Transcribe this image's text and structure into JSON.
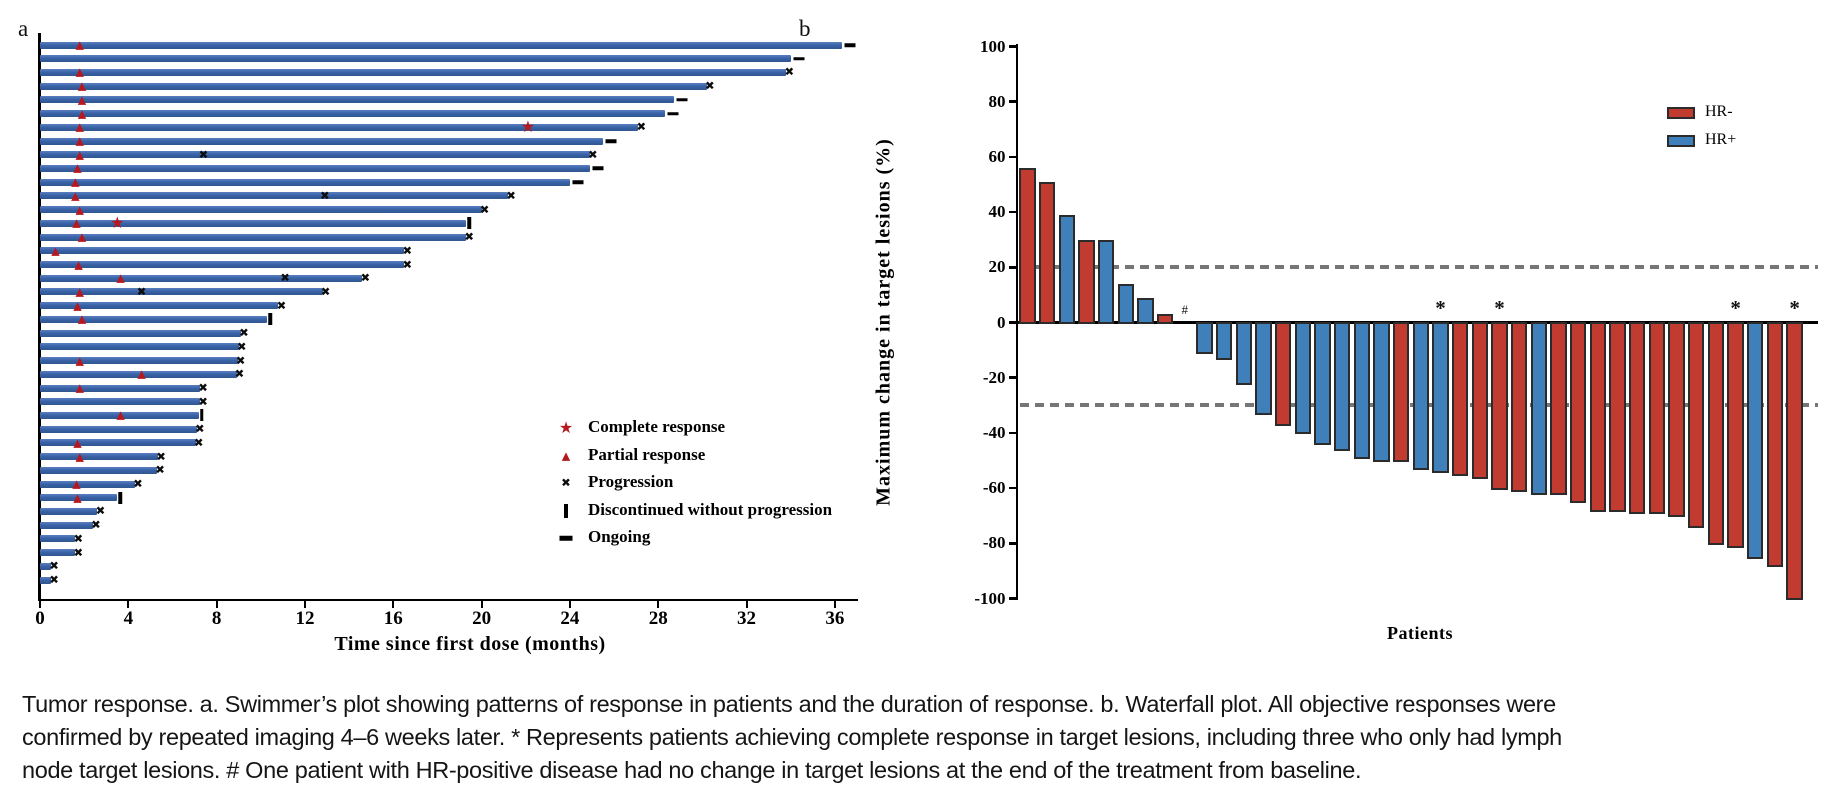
{
  "caption": {
    "lines": [
      "Tumor response. a. Swimmer’s plot showing patterns of response in patients and the duration of response. b. Waterfall plot. All objective responses were",
      "confirmed by repeated imaging 4–6 weeks later. * Represents patients achieving complete response in target lesions, including three who only had lymph",
      "node target lesions. # One patient with HR-positive disease had no change in target lesions at the end of the treatment from baseline."
    ]
  },
  "chart_data": [
    {
      "type": "bar",
      "name": "swimmer-plot",
      "panel_label": "a",
      "orientation": "horizontal",
      "xlabel": "Time since first dose (months)",
      "xlim": [
        0,
        37
      ],
      "x_ticks": [
        0,
        4,
        8,
        12,
        16,
        20,
        24,
        28,
        32,
        36
      ],
      "bar_color": "#3a63a8",
      "marker_red": "#b5191f",
      "legend": [
        {
          "symbol": "star",
          "label": "Complete response"
        },
        {
          "symbol": "triangle",
          "label": "Partial response"
        },
        {
          "symbol": "x",
          "label": "Progression"
        },
        {
          "symbol": "bar",
          "label": "Discontinued without progression"
        },
        {
          "symbol": "dash",
          "label": "Ongoing"
        }
      ],
      "patients": [
        {
          "months": 36.3,
          "end": "ongoing",
          "pr": [
            1.8
          ],
          "cr": [],
          "pd": []
        },
        {
          "months": 34.0,
          "end": "ongoing",
          "pr": [],
          "cr": [],
          "pd": []
        },
        {
          "months": 33.8,
          "end": "progression",
          "pr": [
            1.8
          ],
          "cr": [],
          "pd": []
        },
        {
          "months": 30.2,
          "end": "progression",
          "pr": [
            1.9
          ],
          "cr": [],
          "pd": []
        },
        {
          "months": 28.7,
          "end": "ongoing",
          "pr": [
            1.9
          ],
          "cr": [],
          "pd": []
        },
        {
          "months": 28.3,
          "end": "ongoing",
          "pr": [
            1.9
          ],
          "cr": [],
          "pd": []
        },
        {
          "months": 27.1,
          "end": "progression",
          "pr": [
            1.8
          ],
          "cr": [
            22.1
          ],
          "pd": []
        },
        {
          "months": 25.5,
          "end": "ongoing",
          "pr": [
            1.8
          ],
          "cr": [],
          "pd": []
        },
        {
          "months": 24.9,
          "end": "progression",
          "pr": [
            1.8
          ],
          "cr": [],
          "pd": [
            7.4
          ]
        },
        {
          "months": 24.9,
          "end": "ongoing",
          "pr": [
            1.7
          ],
          "cr": [],
          "pd": []
        },
        {
          "months": 24.0,
          "end": "ongoing",
          "pr": [
            1.6
          ],
          "cr": [],
          "pd": []
        },
        {
          "months": 21.2,
          "end": "progression",
          "pr": [
            1.6
          ],
          "cr": [],
          "pd": [
            12.9
          ]
        },
        {
          "months": 20.0,
          "end": "progression",
          "pr": [
            1.8
          ],
          "cr": [],
          "pd": []
        },
        {
          "months": 19.3,
          "end": "discontinued",
          "pr": [
            1.65
          ],
          "cr": [
            3.5
          ],
          "pd": []
        },
        {
          "months": 19.3,
          "end": "progression",
          "pr": [
            1.9
          ],
          "cr": [],
          "pd": []
        },
        {
          "months": 16.5,
          "end": "progression",
          "pr": [
            0.7
          ],
          "cr": [],
          "pd": []
        },
        {
          "months": 16.5,
          "end": "progression",
          "pr": [
            1.75
          ],
          "cr": [],
          "pd": []
        },
        {
          "months": 14.6,
          "end": "progression",
          "pr": [
            3.65
          ],
          "cr": [],
          "pd": [
            11.1
          ]
        },
        {
          "months": 12.8,
          "end": "progression",
          "pr": [
            1.8
          ],
          "cr": [],
          "pd": [
            4.6
          ]
        },
        {
          "months": 10.8,
          "end": "progression",
          "pr": [
            1.7
          ],
          "cr": [],
          "pd": []
        },
        {
          "months": 10.3,
          "end": "discontinued",
          "pr": [
            1.9
          ],
          "cr": [],
          "pd": []
        },
        {
          "months": 9.1,
          "end": "progression",
          "pr": [],
          "cr": [],
          "pd": []
        },
        {
          "months": 9.0,
          "end": "progression",
          "pr": [],
          "cr": [],
          "pd": []
        },
        {
          "months": 8.95,
          "end": "progression",
          "pr": [
            1.8
          ],
          "cr": [],
          "pd": []
        },
        {
          "months": 8.9,
          "end": "progression",
          "pr": [
            4.6
          ],
          "cr": [],
          "pd": []
        },
        {
          "months": 7.25,
          "end": "progression",
          "pr": [
            1.8
          ],
          "cr": [],
          "pd": []
        },
        {
          "months": 7.25,
          "end": "progression",
          "pr": [],
          "cr": [],
          "pd": []
        },
        {
          "months": 7.2,
          "end": "discontinued",
          "pr": [
            3.65
          ],
          "cr": [],
          "pd": []
        },
        {
          "months": 7.1,
          "end": "progression",
          "pr": [],
          "cr": [],
          "pd": []
        },
        {
          "months": 7.05,
          "end": "progression",
          "pr": [
            1.7
          ],
          "cr": [],
          "pd": []
        },
        {
          "months": 5.35,
          "end": "progression",
          "pr": [
            1.8
          ],
          "cr": [],
          "pd": []
        },
        {
          "months": 5.3,
          "end": "progression",
          "pr": [],
          "cr": [],
          "pd": []
        },
        {
          "months": 4.3,
          "end": "progression",
          "pr": [
            1.65
          ],
          "cr": [],
          "pd": []
        },
        {
          "months": 3.5,
          "end": "discontinued",
          "pr": [
            1.7
          ],
          "cr": [],
          "pd": []
        },
        {
          "months": 2.6,
          "end": "progression",
          "pr": [],
          "cr": [],
          "pd": []
        },
        {
          "months": 2.4,
          "end": "progression",
          "pr": [],
          "cr": [],
          "pd": []
        },
        {
          "months": 1.6,
          "end": "progression",
          "pr": [],
          "cr": [],
          "pd": []
        },
        {
          "months": 1.6,
          "end": "progression",
          "pr": [],
          "cr": [],
          "pd": []
        },
        {
          "months": 0.5,
          "end": "progression",
          "pr": [],
          "cr": [],
          "pd": []
        },
        {
          "months": 0.5,
          "end": "progression",
          "pr": [],
          "cr": [],
          "pd": []
        }
      ]
    },
    {
      "type": "bar",
      "name": "waterfall-plot",
      "panel_label": "b",
      "ylabel": "Maximum change in target lesions (%)",
      "xlabel": "Patients",
      "ylim": [
        -100,
        100
      ],
      "y_ticks": [
        100,
        80,
        60,
        40,
        20,
        0,
        -20,
        -40,
        -60,
        -80,
        -100
      ],
      "reference_lines": [
        20,
        -30
      ],
      "legend": [
        {
          "label": "HR-",
          "color": "#c23b31"
        },
        {
          "label": "HR+",
          "color": "#3f80ba"
        }
      ],
      "series_colors": {
        "HR-": "#c23b31",
        "HR+": "#3f80ba"
      },
      "patients": [
        {
          "v": 56,
          "g": "HR-"
        },
        {
          "v": 51,
          "g": "HR-"
        },
        {
          "v": 39,
          "g": "HR+"
        },
        {
          "v": 30,
          "g": "HR-"
        },
        {
          "v": 30,
          "g": "HR+"
        },
        {
          "v": 14,
          "g": "HR+"
        },
        {
          "v": 9,
          "g": "HR+"
        },
        {
          "v": 3,
          "g": "HR-"
        },
        {
          "v": 0,
          "g": "HR+",
          "note": "#"
        },
        {
          "v": -11,
          "g": "HR+"
        },
        {
          "v": -13,
          "g": "HR+"
        },
        {
          "v": -22,
          "g": "HR+"
        },
        {
          "v": -33,
          "g": "HR+"
        },
        {
          "v": -37,
          "g": "HR-"
        },
        {
          "v": -40,
          "g": "HR+"
        },
        {
          "v": -44,
          "g": "HR+"
        },
        {
          "v": -46,
          "g": "HR+"
        },
        {
          "v": -49,
          "g": "HR+"
        },
        {
          "v": -50,
          "g": "HR+"
        },
        {
          "v": -50,
          "g": "HR-"
        },
        {
          "v": -53,
          "g": "HR+"
        },
        {
          "v": -54,
          "g": "HR+",
          "note": "*"
        },
        {
          "v": -55,
          "g": "HR-"
        },
        {
          "v": -56,
          "g": "HR-"
        },
        {
          "v": -60,
          "g": "HR-",
          "note": "*"
        },
        {
          "v": -61,
          "g": "HR-"
        },
        {
          "v": -62,
          "g": "HR+"
        },
        {
          "v": -62,
          "g": "HR-"
        },
        {
          "v": -65,
          "g": "HR-"
        },
        {
          "v": -68,
          "g": "HR-"
        },
        {
          "v": -68,
          "g": "HR-"
        },
        {
          "v": -69,
          "g": "HR-"
        },
        {
          "v": -69,
          "g": "HR-"
        },
        {
          "v": -70,
          "g": "HR-"
        },
        {
          "v": -74,
          "g": "HR-"
        },
        {
          "v": -80,
          "g": "HR-"
        },
        {
          "v": -81,
          "g": "HR-",
          "note": "*"
        },
        {
          "v": -85,
          "g": "HR+"
        },
        {
          "v": -88,
          "g": "HR-"
        },
        {
          "v": -100,
          "g": "HR-",
          "note": "*"
        }
      ]
    }
  ]
}
